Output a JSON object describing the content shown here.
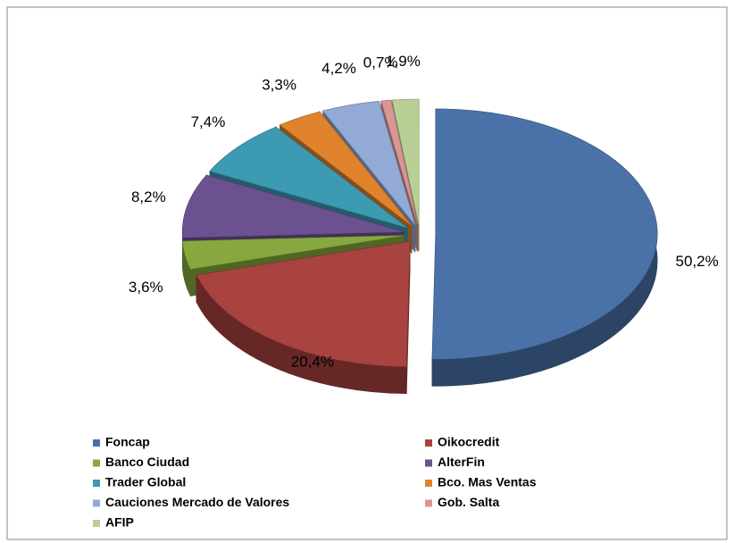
{
  "chart_data": {
    "type": "pie",
    "categories": [
      "Foncap",
      "Oikocredit",
      "Banco Ciudad",
      "AlterFin",
      "Trader Global",
      "Bco. Mas Ventas",
      "Cauciones Mercado de Valores",
      "Gob. Salta",
      "AFIP"
    ],
    "values": [
      50.2,
      20.4,
      3.6,
      8.2,
      7.4,
      3.3,
      4.2,
      0.7,
      1.9
    ],
    "value_labels": [
      "50,2%",
      "20,4%",
      "3,6%",
      "8,2%",
      "7,4%",
      "3,3%",
      "4,2%",
      "0,7%",
      "1,9%"
    ],
    "colors": [
      "#4a72a8",
      "#a84340",
      "#87a83e",
      "#6c5191",
      "#3c9ab3",
      "#e0832c",
      "#93a9d6",
      "#d99694",
      "#b8d095"
    ],
    "legend": "bottom"
  }
}
